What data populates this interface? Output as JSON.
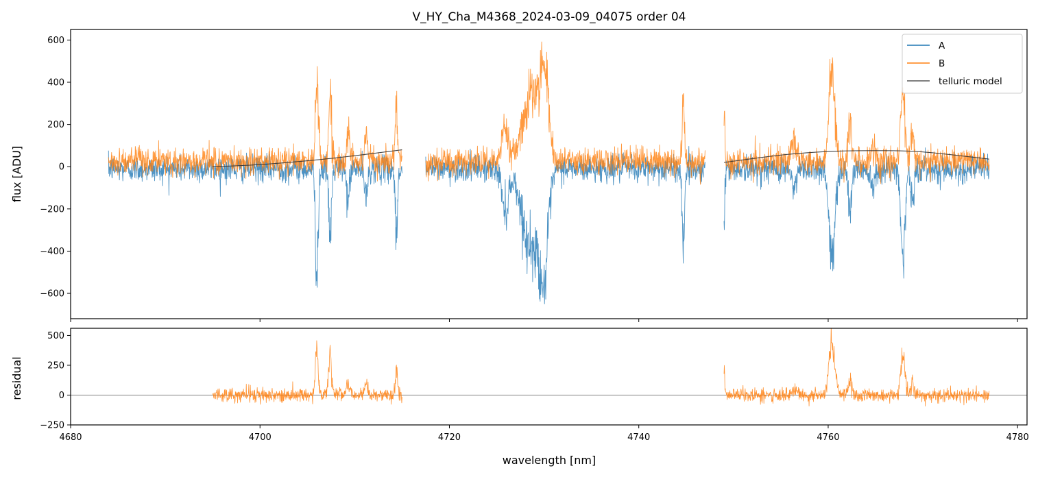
{
  "chart_data": [
    {
      "type": "line",
      "title": "V_HY_Cha_M4368_2024-03-09_04075  order 04",
      "xlabel": "",
      "ylabel": "flux [ADU]",
      "xlim": [
        4680,
        4781
      ],
      "ylim": [
        -720,
        650
      ],
      "yticks": [
        600,
        400,
        200,
        0,
        -200,
        -400,
        -600
      ],
      "ytick_labels": [
        "600",
        "400",
        "200",
        "0",
        "−200",
        "−400",
        "−600"
      ],
      "xticks": [
        4680,
        4700,
        4720,
        4740,
        4760,
        4780
      ],
      "legend": {
        "position": "top-right",
        "entries": [
          {
            "label": "A",
            "color": "#1f77b4"
          },
          {
            "label": "B",
            "color": "#ff7f0e"
          },
          {
            "label": "telluric model",
            "color": "#555555"
          }
        ]
      },
      "segments": [
        [
          4684.0,
          4715.0
        ],
        [
          4717.5,
          4747.0
        ],
        [
          4749.0,
          4777.0
        ]
      ],
      "noise_amplitude": 55,
      "series": [
        {
          "name": "A",
          "color": "#1f77b4",
          "baseline": -10,
          "features": [
            {
              "x": 4706.0,
              "depth": -480,
              "width": 0.15
            },
            {
              "x": 4707.4,
              "depth": -320,
              "width": 0.15
            },
            {
              "x": 4709.3,
              "depth": -160,
              "width": 0.15
            },
            {
              "x": 4711.2,
              "depth": -150,
              "width": 0.15
            },
            {
              "x": 4714.4,
              "depth": -330,
              "width": 0.12
            },
            {
              "x": 4725.9,
              "depth": -190,
              "width": 0.35
            },
            {
              "x": 4728.6,
              "depth": -380,
              "width": 0.9
            },
            {
              "x": 4730.0,
              "depth": -430,
              "width": 0.45
            },
            {
              "x": 4744.7,
              "depth": -380,
              "width": 0.12
            },
            {
              "x": 4749.0,
              "depth": -250,
              "width": 0.08
            },
            {
              "x": 4756.4,
              "depth": -100,
              "width": 0.25
            },
            {
              "x": 4760.4,
              "depth": -450,
              "width": 0.3
            },
            {
              "x": 4762.3,
              "depth": -200,
              "width": 0.18
            },
            {
              "x": 4764.7,
              "depth": -80,
              "width": 0.2
            },
            {
              "x": 4767.9,
              "depth": -420,
              "width": 0.22
            },
            {
              "x": 4768.9,
              "depth": -170,
              "width": 0.18
            }
          ]
        },
        {
          "name": "B",
          "color": "#ff7f0e",
          "baseline": 25,
          "features": [
            {
              "x": 4706.0,
              "depth": 420,
              "width": 0.15
            },
            {
              "x": 4707.4,
              "depth": 330,
              "width": 0.15
            },
            {
              "x": 4709.3,
              "depth": 150,
              "width": 0.15
            },
            {
              "x": 4711.2,
              "depth": 140,
              "width": 0.15
            },
            {
              "x": 4714.4,
              "depth": 280,
              "width": 0.12
            },
            {
              "x": 4725.9,
              "depth": 160,
              "width": 0.35
            },
            {
              "x": 4728.6,
              "depth": 310,
              "width": 0.9
            },
            {
              "x": 4730.0,
              "depth": 380,
              "width": 0.45
            },
            {
              "x": 4744.7,
              "depth": 280,
              "width": 0.12
            },
            {
              "x": 4749.0,
              "depth": 230,
              "width": 0.08
            },
            {
              "x": 4756.4,
              "depth": 90,
              "width": 0.25
            },
            {
              "x": 4760.4,
              "depth": 450,
              "width": 0.3
            },
            {
              "x": 4762.3,
              "depth": 170,
              "width": 0.18
            },
            {
              "x": 4764.7,
              "depth": 70,
              "width": 0.2
            },
            {
              "x": 4767.9,
              "depth": 380,
              "width": 0.22
            },
            {
              "x": 4768.9,
              "depth": 150,
              "width": 0.18
            }
          ]
        },
        {
          "name": "telluric model",
          "color": "#333333",
          "segments": [
            {
              "x": [
                4695.0,
                4700.0,
                4705.0,
                4710.0,
                4715.0
              ],
              "y": [
                0,
                10,
                28,
                52,
                80
              ]
            },
            {
              "x": [
                4749.0,
                4755.0,
                4760.0,
                4765.0,
                4770.0,
                4777.0
              ],
              "y": [
                20,
                55,
                72,
                76,
                70,
                36
              ]
            }
          ]
        }
      ]
    },
    {
      "type": "line",
      "title": "",
      "xlabel": "wavelength [nm]",
      "ylabel": "residual",
      "xlim": [
        4680,
        4781
      ],
      "ylim": [
        -250,
        560
      ],
      "yticks": [
        500,
        250,
        0,
        -250
      ],
      "ytick_labels": [
        "500",
        "250",
        "0",
        "−250"
      ],
      "xticks": [
        4680,
        4700,
        4720,
        4740,
        4760,
        4780
      ],
      "xtick_labels": [
        "4680",
        "4700",
        "4720",
        "4740",
        "4760",
        "4780"
      ],
      "reference_line": 0,
      "segments": [
        [
          4695.0,
          4715.0
        ],
        [
          4749.0,
          4777.0
        ]
      ],
      "noise_amplitude": 55,
      "series": [
        {
          "name": "residual B",
          "color": "#ff7f0e",
          "baseline": 0,
          "features": [
            {
              "x": 4706.0,
              "depth": 420,
              "width": 0.15
            },
            {
              "x": 4707.4,
              "depth": 320,
              "width": 0.15
            },
            {
              "x": 4709.3,
              "depth": 110,
              "width": 0.15
            },
            {
              "x": 4711.2,
              "depth": 110,
              "width": 0.15
            },
            {
              "x": 4714.4,
              "depth": 230,
              "width": 0.12
            },
            {
              "x": 4749.0,
              "depth": 200,
              "width": 0.08
            },
            {
              "x": 4756.4,
              "depth": 70,
              "width": 0.25
            },
            {
              "x": 4760.4,
              "depth": 430,
              "width": 0.3
            },
            {
              "x": 4762.3,
              "depth": 120,
              "width": 0.18
            },
            {
              "x": 4767.9,
              "depth": 330,
              "width": 0.22
            },
            {
              "x": 4768.9,
              "depth": 100,
              "width": 0.18
            }
          ]
        }
      ]
    }
  ]
}
